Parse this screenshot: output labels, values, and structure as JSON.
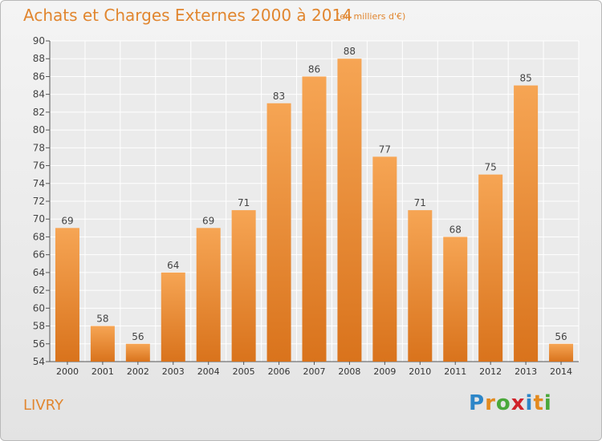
{
  "title": "Achats et Charges Externes 2000 à 2014",
  "subtitle": "(en milliers d'€)",
  "town": "LIVRY",
  "logo": {
    "letters": [
      "P",
      "r",
      "o",
      "x",
      "i",
      "t",
      "i"
    ],
    "colors": [
      "#2d86c8",
      "#e38a1e",
      "#4aa83a",
      "#d0222a",
      "#2d86c8",
      "#e38a1e",
      "#4aa83a"
    ]
  },
  "chart_data": {
    "type": "bar",
    "categories": [
      "2000",
      "2001",
      "2002",
      "2003",
      "2004",
      "2005",
      "2006",
      "2007",
      "2008",
      "2009",
      "2010",
      "2011",
      "2012",
      "2013",
      "2014"
    ],
    "values": [
      69,
      58,
      56,
      64,
      69,
      71,
      83,
      86,
      88,
      77,
      71,
      68,
      75,
      85,
      56
    ],
    "ylim": [
      54,
      90
    ],
    "yticks": [
      54,
      56,
      58,
      60,
      62,
      64,
      66,
      68,
      70,
      72,
      74,
      76,
      78,
      80,
      82,
      84,
      86,
      88,
      90
    ],
    "bar_color": "#f0943a",
    "grid": true
  }
}
